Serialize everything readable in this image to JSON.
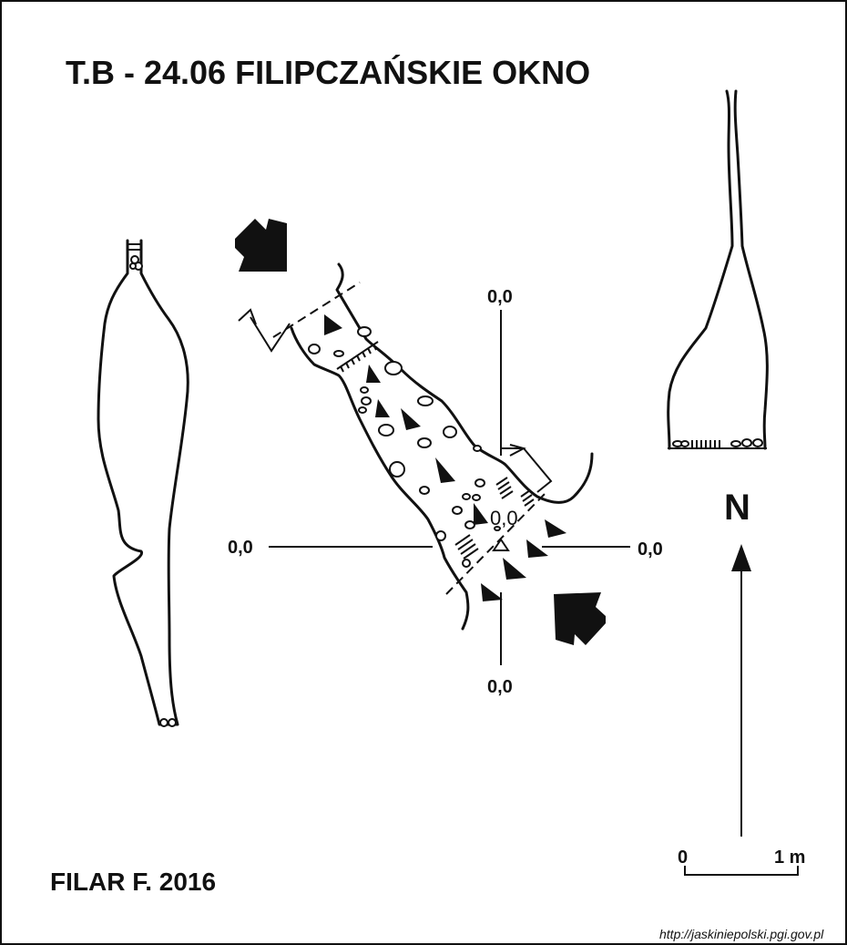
{
  "title": "T.B - 24.06  FILIPCZAŃSKIE OKNO",
  "author": "FILAR F. 2016",
  "source_url": "http://jaskiniepolski.pgi.gov.pl",
  "plan": {
    "label_top": "0,0",
    "label_bottom": "0,0",
    "label_left": "0,0",
    "label_right": "0,0",
    "label_center": "0,0"
  },
  "north_label": "N",
  "scale": {
    "min_label": "0",
    "max_label": "1 m"
  },
  "colors": {
    "ink": "#111111",
    "paper": "#ffffff"
  }
}
